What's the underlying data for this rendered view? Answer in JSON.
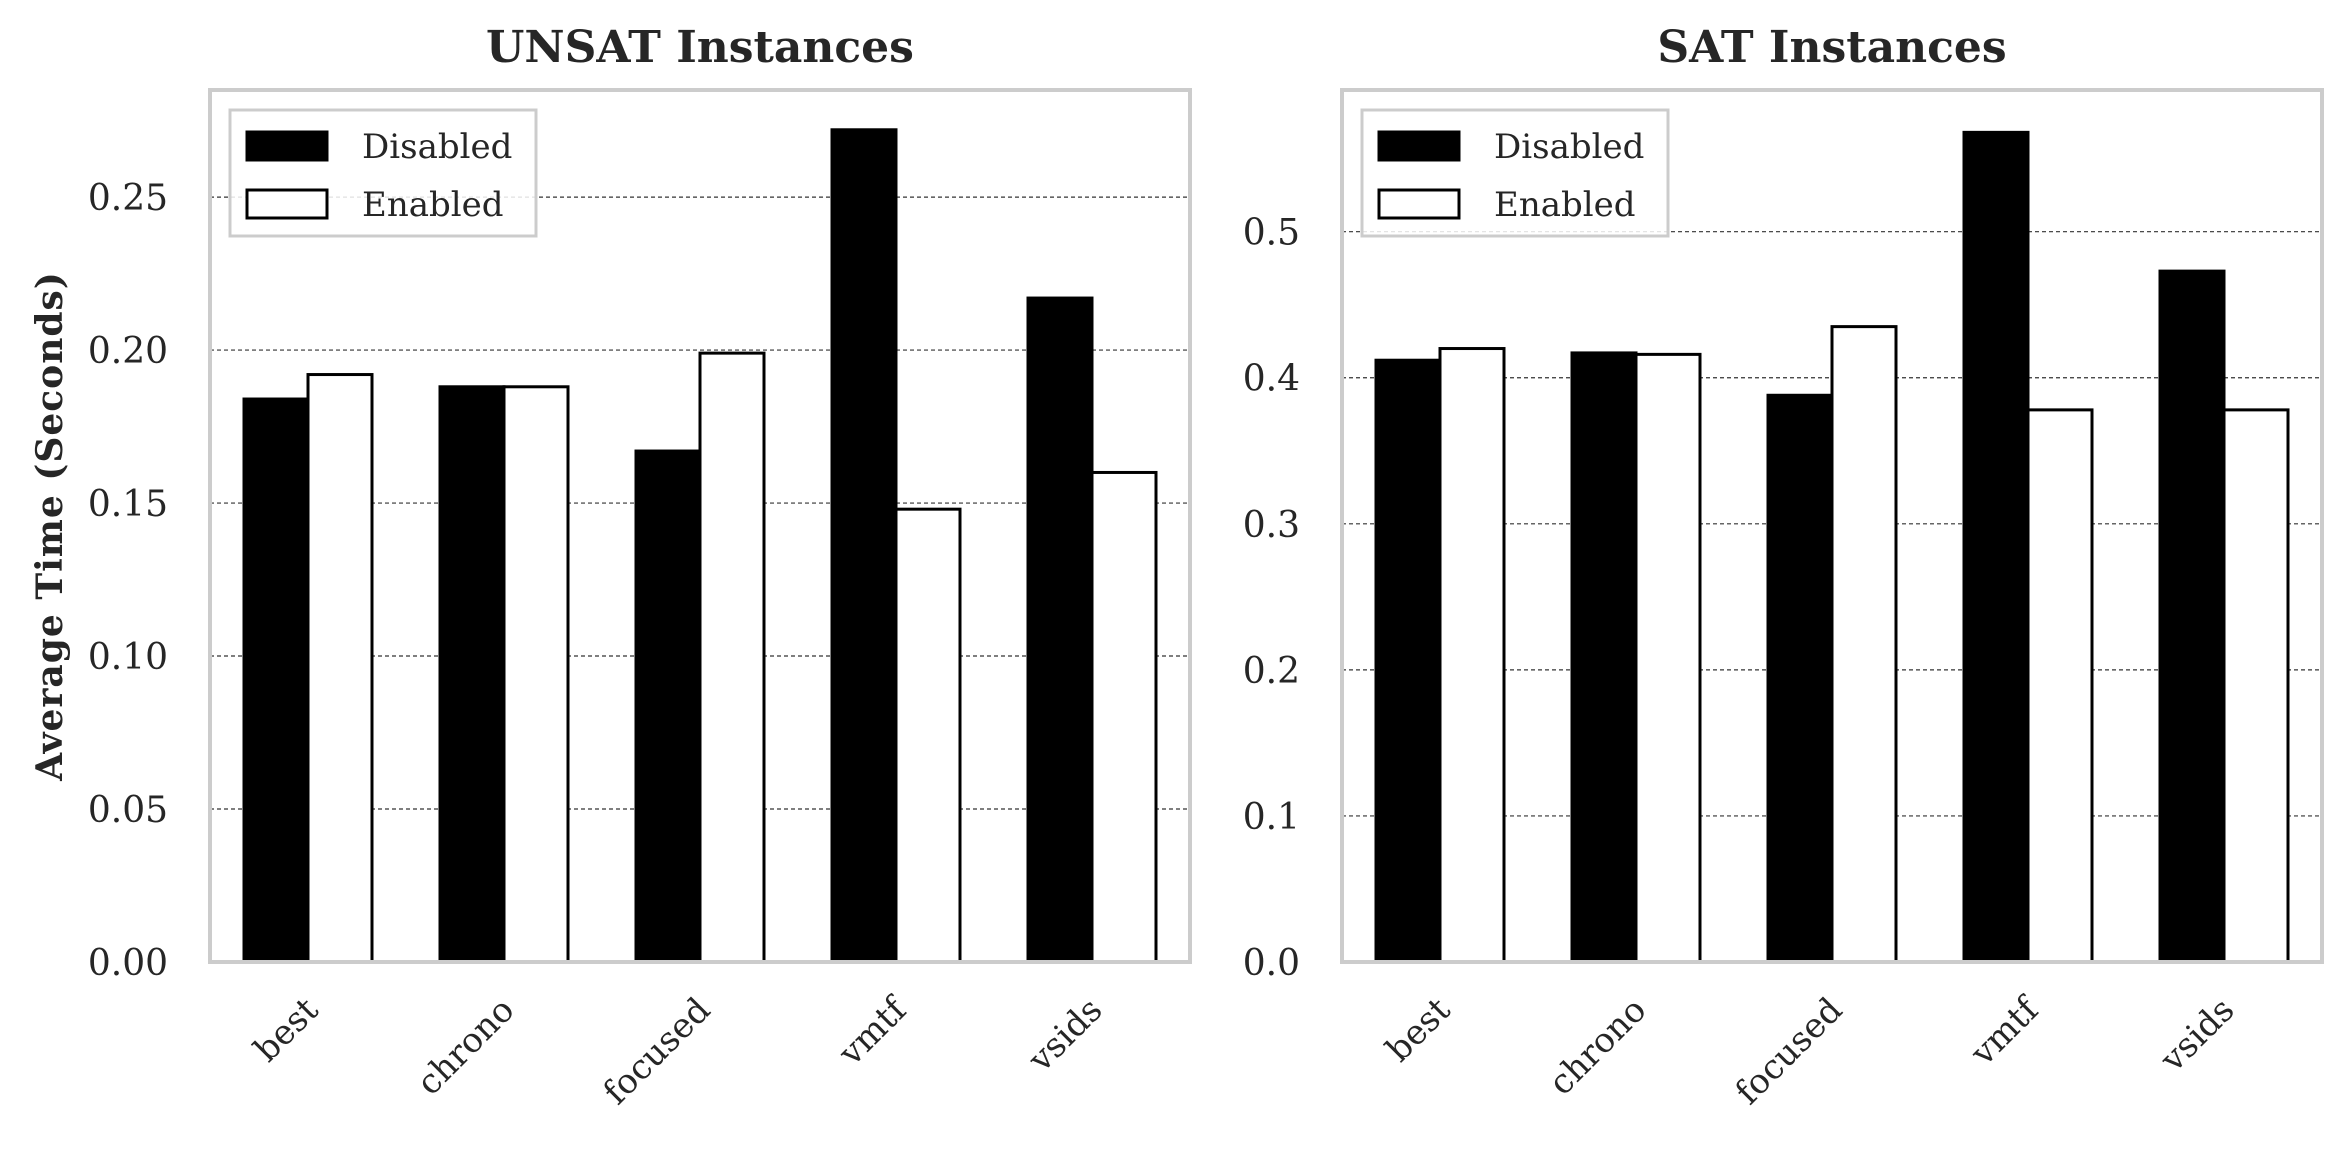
{
  "chart_data": [
    {
      "type": "bar",
      "title": "UNSAT Instances",
      "xlabel": "",
      "ylabel": "Average Time (Seconds)",
      "categories": [
        "best",
        "chrono",
        "focused",
        "vmtf",
        "vsids"
      ],
      "series": [
        {
          "name": "Disabled",
          "values": [
            0.184,
            0.188,
            0.167,
            0.272,
            0.217
          ]
        },
        {
          "name": "Enabled",
          "values": [
            0.192,
            0.188,
            0.199,
            0.148,
            0.16
          ]
        }
      ],
      "ylim": [
        0,
        0.285
      ],
      "yticks": [
        0.0,
        0.05,
        0.1,
        0.15,
        0.2,
        0.25
      ],
      "ytick_labels": [
        "0.00",
        "0.05",
        "0.10",
        "0.15",
        "0.20",
        "0.25"
      ],
      "grid": "y",
      "legend_position": "upper-left"
    },
    {
      "type": "bar",
      "title": "SAT Instances",
      "xlabel": "",
      "ylabel": "",
      "categories": [
        "best",
        "chrono",
        "focused",
        "vmtf",
        "vsids"
      ],
      "series": [
        {
          "name": "Disabled",
          "values": [
            0.412,
            0.417,
            0.388,
            0.568,
            0.473
          ]
        },
        {
          "name": "Enabled",
          "values": [
            0.42,
            0.416,
            0.435,
            0.378,
            0.378
          ]
        }
      ],
      "ylim": [
        0,
        0.597
      ],
      "yticks": [
        0.0,
        0.1,
        0.2,
        0.3,
        0.4,
        0.5
      ],
      "ytick_labels": [
        "0.0",
        "0.1",
        "0.2",
        "0.3",
        "0.4",
        "0.5"
      ],
      "grid": "y",
      "legend_position": "upper-left"
    }
  ],
  "colors": {
    "disabled_fill": "#000000",
    "enabled_fill": "#ffffff",
    "bar_edge": "#000000",
    "frame": "#cccccc",
    "grid": "#333333",
    "text": "#262626"
  }
}
